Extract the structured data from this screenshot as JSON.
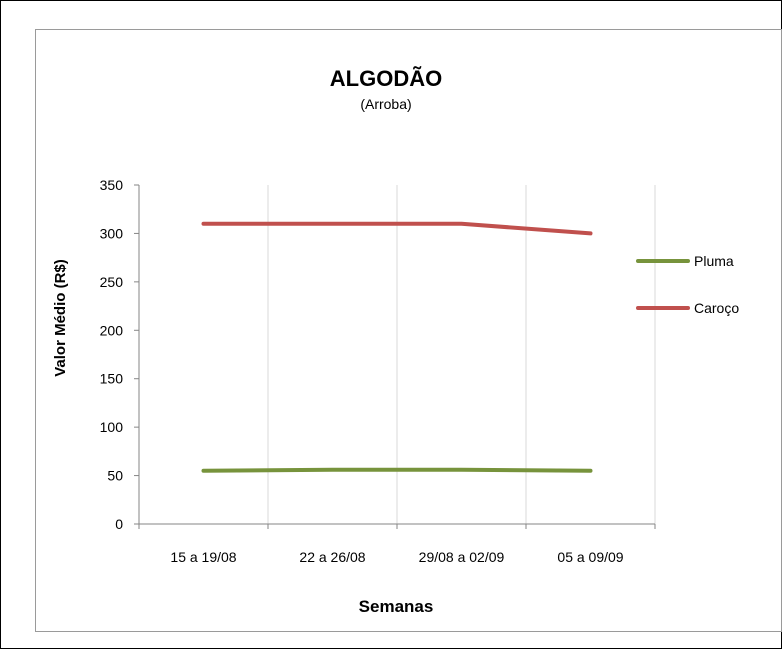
{
  "chart_data": {
    "type": "line",
    "title": "ALGODÃO",
    "subtitle": "(Arroba)",
    "xlabel": "Semanas",
    "ylabel": "Valor Médio (R$)",
    "categories": [
      "15 a 19/08",
      "22 a 26/08",
      "29/08 a 02/09",
      "05 a 09/09"
    ],
    "ylim": [
      0,
      350
    ],
    "yticks": [
      0,
      50,
      100,
      150,
      200,
      250,
      300,
      350
    ],
    "grid": "vertical",
    "legend": "right",
    "series": [
      {
        "name": "Pluma",
        "color": "#77933c",
        "values": [
          55,
          56,
          56,
          55
        ]
      },
      {
        "name": "Caroço",
        "color": "#c0504d",
        "values": [
          310,
          310,
          310,
          300
        ]
      }
    ]
  }
}
